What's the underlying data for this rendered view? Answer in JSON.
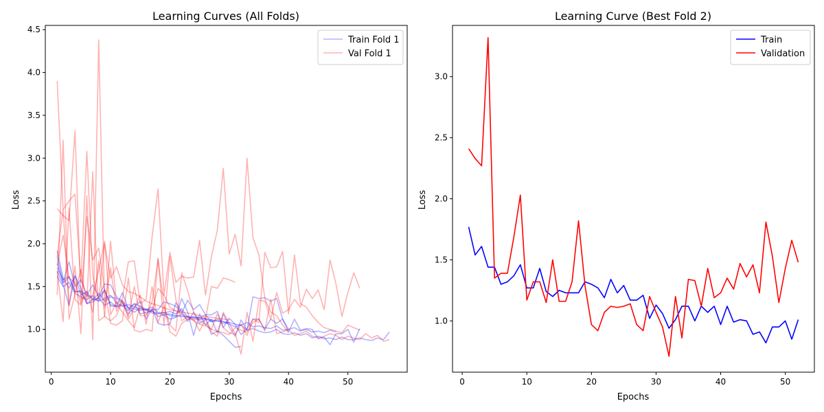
{
  "chart_data": [
    {
      "type": "line",
      "title": "Learning Curves (All Folds)",
      "xlabel": "Epochs",
      "ylabel": "Loss",
      "xlim": [
        -1,
        60
      ],
      "ylim": [
        0.5,
        4.55
      ],
      "xticks": [
        0,
        10,
        20,
        30,
        40,
        50
      ],
      "yticks": [
        1.0,
        1.5,
        2.0,
        2.5,
        3.0,
        3.5,
        4.0,
        4.5
      ],
      "grid": false,
      "legend_position": "top-right",
      "legend": [
        {
          "label": "Train Fold 1",
          "color": "#0000ff"
        },
        {
          "label": "Val Fold 1",
          "color": "#ff0000"
        }
      ],
      "series": [
        {
          "group": "train",
          "color": "#0000ff",
          "alpha": 0.3,
          "values": [
            1.72,
            1.58,
            1.62,
            1.44,
            1.45,
            1.4,
            1.36,
            1.33,
            1.36,
            1.4,
            1.31,
            1.27,
            1.29,
            1.26,
            1.24,
            1.22,
            1.21,
            1.19,
            1.17,
            1.18,
            1.16,
            1.15,
            1.15,
            1.13,
            1.14,
            1.12,
            1.11,
            1.1,
            1.09,
            1.08
          ]
        },
        {
          "group": "train",
          "color": "#0000ff",
          "alpha": 0.3,
          "values": [
            1.85,
            1.55,
            1.79,
            1.5,
            1.58,
            1.4,
            1.52,
            1.38,
            1.53,
            1.52,
            1.38,
            1.33,
            1.25,
            1.3,
            1.27,
            1.23,
            1.26,
            1.2,
            1.19,
            1.21,
            1.18,
            1.24,
            1.14,
            1.15,
            1.13,
            1.17,
            1.09,
            1.12,
            1.09,
            1.06,
            1.03,
            1.05,
            0.99,
            1.01,
            0.98,
            0.96,
            0.97,
            1.0,
            0.95,
            0.94,
            0.96,
            0.93,
            0.95,
            0.9,
            0.92,
            0.89,
            0.9,
            0.88,
            0.91,
            0.88,
            0.88,
            0.9,
            0.88,
            0.87,
            0.9,
            0.88,
            0.97
          ]
        },
        {
          "group": "train",
          "color": "#0000ff",
          "alpha": 0.3,
          "values": [
            1.62,
            1.5,
            1.55,
            1.42,
            1.38,
            1.35,
            1.39,
            1.33,
            1.46,
            1.29,
            1.27,
            1.3,
            1.25,
            1.24,
            1.22,
            1.24,
            1.19,
            1.18,
            1.2,
            1.16,
            1.15,
            1.17,
            1.12,
            1.14,
            1.11,
            1.13,
            1.09,
            1.1,
            1.07,
            1.08,
            1.06,
            1.05,
            1.08,
            1.03,
            1.04,
            1.02,
            1.01,
            1.04,
            0.99,
            1.0,
            1.02,
            0.98,
            1.0,
            0.97,
            0.98,
            0.96,
            0.99,
            0.97
          ]
        },
        {
          "group": "train",
          "color": "#0000ff",
          "alpha": 0.3,
          "values": [
            1.92,
            1.6,
            1.48,
            1.62,
            1.4,
            1.44,
            1.34,
            1.37,
            1.28,
            1.32,
            1.26,
            1.28,
            1.22,
            1.3,
            1.18,
            1.2,
            1.22,
            1.15,
            1.17,
            1.12,
            1.14,
            1.36,
            1.2,
            0.93,
            1.18,
            1.05,
            1.12,
            0.96,
            1.18,
            1.03,
            0.92,
            1.11,
            0.99,
            1.38,
            1.36,
            1.37,
            1.33,
            1.36,
            1.12,
            1.0
          ]
        },
        {
          "group": "train",
          "color": "#0000ff",
          "alpha": 0.3,
          "values": [
            1.77,
            1.54,
            1.61,
            1.44,
            1.44,
            1.3,
            1.32,
            1.37,
            1.46,
            1.27,
            1.27,
            1.43,
            1.24,
            1.2,
            1.25,
            1.23,
            1.23,
            1.23,
            1.32,
            1.3,
            1.27,
            1.19,
            1.34,
            1.23,
            1.29,
            1.17,
            1.17,
            1.21,
            1.02,
            1.13,
            1.06,
            0.94,
            1.01,
            1.12,
            1.12,
            1.0,
            1.12,
            1.07,
            1.12,
            0.97,
            1.12,
            0.99,
            1.01,
            1.0,
            0.89,
            0.91,
            0.82,
            0.95,
            0.95,
            1.0,
            0.85,
            1.01
          ]
        },
        {
          "group": "train",
          "color": "#0000ff",
          "alpha": 0.3,
          "values": [
            1.68,
            1.52,
            1.28,
            1.63,
            1.48,
            1.3,
            1.35,
            1.42,
            1.33,
            1.38,
            1.36,
            1.32,
            1.18,
            1.26,
            1.33,
            1.12,
            1.24,
            1.07,
            1.05,
            1.06,
            1.31,
            1.21,
            1.09,
            1.2,
            1.07,
            1.12,
            0.94,
            0.98,
            0.93,
            0.86,
            0.79,
            0.8
          ]
        },
        {
          "group": "val",
          "color": "#ff0000",
          "alpha": 0.3,
          "values": [
            3.9,
            2.4,
            2.5,
            2.58,
            1.55,
            3.08,
            1.62,
            1.35,
            2.0,
            1.6,
            1.73,
            1.52,
            1.44,
            1.42,
            1.38,
            1.33,
            1.3,
            1.28,
            1.25,
            1.23,
            1.22,
            1.2,
            1.19,
            1.18,
            1.16,
            1.15,
            1.14,
            1.13,
            1.12,
            1.11
          ]
        },
        {
          "group": "val",
          "color": "#ff0000",
          "alpha": 0.3,
          "values": [
            1.4,
            3.21,
            1.12,
            1.42,
            1.7,
            1.3,
            2.84,
            1.1,
            1.15,
            2.03,
            1.3,
            1.2,
            1.1,
            1.02,
            1.28,
            1.18,
            1.22,
            1.48,
            1.4,
            1.26,
            1.21,
            1.18,
            1.15,
            1.1,
            1.06,
            1.04,
            1.0,
            0.98,
            0.96,
            0.94,
            1.02,
            0.99,
            0.97,
            1.08,
            1.12,
            0.98,
            1.35,
            0.95,
            0.97,
            1.0,
            0.93,
            0.95,
            0.98,
            0.92,
            0.9,
            0.92,
            0.95,
            0.93,
            0.88,
            0.92,
            0.9,
            0.88,
            0.95,
            0.9,
            0.93,
            0.86,
            0.88
          ]
        },
        {
          "group": "val",
          "color": "#ff0000",
          "alpha": 0.3,
          "values": [
            2.41,
            2.33,
            2.27,
            3.32,
            1.35,
            1.39,
            1.39,
            1.69,
            2.03,
            1.17,
            1.32,
            1.32,
            1.15,
            1.5,
            1.16,
            1.16,
            1.32,
            1.82,
            1.29,
            0.97,
            0.92,
            1.07,
            1.12,
            1.11,
            1.12,
            1.14,
            0.97,
            0.92,
            1.2,
            1.07,
            0.95,
            0.71,
            1.2,
            0.86,
            1.34,
            1.33,
            1.12,
            1.43,
            1.19,
            1.23,
            1.35,
            1.26,
            1.47,
            1.36,
            1.46,
            1.23,
            1.81,
            1.53,
            1.15,
            1.43,
            1.66,
            1.48
          ]
        },
        {
          "group": "val",
          "color": "#ff0000",
          "alpha": 0.3,
          "values": [
            1.85,
            2.4,
            1.28,
            1.74,
            0.95,
            2.56,
            0.88,
            4.38,
            1.25,
            1.72,
            1.21,
            1.36,
            1.79,
            1.8,
            1.3,
            1.35,
            2.08,
            2.64,
            1.4,
            1.9,
            1.55,
            1.62,
            1.6,
            1.61,
            2.04,
            1.4,
            1.85,
            2.16,
            2.88,
            1.88,
            2.11,
            1.74,
            3.0,
            2.07,
            1.87,
            1.36,
            1.2,
            1.16,
            1.05,
            0.96
          ]
        },
        {
          "group": "val",
          "color": "#ff0000",
          "alpha": 0.3,
          "values": [
            1.68,
            1.09,
            2.42,
            1.35,
            1.28,
            2.32,
            1.81,
            1.95,
            1.46,
            1.07,
            1.05,
            1.1,
            1.6,
            0.99,
            0.97,
            1.0,
            0.98,
            1.83,
            1.05,
            1.85,
            1.35,
            1.1,
            1.15,
            1.12,
            0.98,
            1.12,
            1.5,
            1.48,
            1.6,
            1.58,
            1.55
          ]
        },
        {
          "group": "val",
          "color": "#ff0000",
          "alpha": 0.3,
          "values": [
            1.75,
            2.1,
            1.6,
            1.55,
            1.3,
            1.45,
            1.2,
            1.8,
            1.15,
            1.1,
            1.16,
            1.34,
            1.12,
            1.25,
            1.4,
            1.06,
            1.5,
            1.08,
            1.27,
            1.05,
            0.98,
            1.66,
            1.45,
            1.2,
            1.1,
            1.06,
            1.0,
            1.18,
            1.02,
            0.96,
            0.94,
            1.06,
            0.93,
            1.12,
            1.08,
            1.9,
            1.72,
            1.73,
            1.91,
            1.18,
            1.87,
            1.3,
            1.26,
            1.16,
            1.08,
            1.02,
            1.0,
            0.98,
            0.96,
            1.05,
            1.02,
            0.99
          ]
        }
      ]
    },
    {
      "type": "line",
      "title": "Learning Curve (Best Fold 2)",
      "xlabel": "Epochs",
      "ylabel": "Loss",
      "xlim": [
        -1.5,
        54.5
      ],
      "ylim": [
        0.58,
        3.42
      ],
      "xticks": [
        0,
        10,
        20,
        30,
        40,
        50
      ],
      "yticks": [
        1.0,
        1.5,
        2.0,
        2.5,
        3.0
      ],
      "grid": false,
      "legend_position": "top-right",
      "series": [
        {
          "name": "Train",
          "color": "#0000ff",
          "values": [
            1.77,
            1.54,
            1.61,
            1.44,
            1.44,
            1.3,
            1.32,
            1.37,
            1.46,
            1.27,
            1.27,
            1.43,
            1.24,
            1.2,
            1.25,
            1.23,
            1.23,
            1.23,
            1.32,
            1.3,
            1.27,
            1.19,
            1.34,
            1.23,
            1.29,
            1.17,
            1.17,
            1.21,
            1.02,
            1.13,
            1.06,
            0.94,
            1.01,
            1.12,
            1.12,
            1.0,
            1.12,
            1.07,
            1.12,
            0.97,
            1.12,
            0.99,
            1.01,
            1.0,
            0.89,
            0.91,
            0.82,
            0.95,
            0.95,
            1.0,
            0.85,
            1.01
          ]
        },
        {
          "name": "Validation",
          "color": "#ff0000",
          "values": [
            2.41,
            2.33,
            2.27,
            3.32,
            1.35,
            1.39,
            1.39,
            1.69,
            2.03,
            1.17,
            1.32,
            1.32,
            1.15,
            1.5,
            1.16,
            1.16,
            1.32,
            1.82,
            1.29,
            0.97,
            0.92,
            1.07,
            1.12,
            1.11,
            1.12,
            1.14,
            0.97,
            0.92,
            1.2,
            1.07,
            0.95,
            0.71,
            1.2,
            0.86,
            1.34,
            1.33,
            1.12,
            1.43,
            1.19,
            1.23,
            1.35,
            1.26,
            1.47,
            1.36,
            1.46,
            1.23,
            1.81,
            1.53,
            1.15,
            1.43,
            1.66,
            1.48
          ]
        }
      ]
    }
  ]
}
